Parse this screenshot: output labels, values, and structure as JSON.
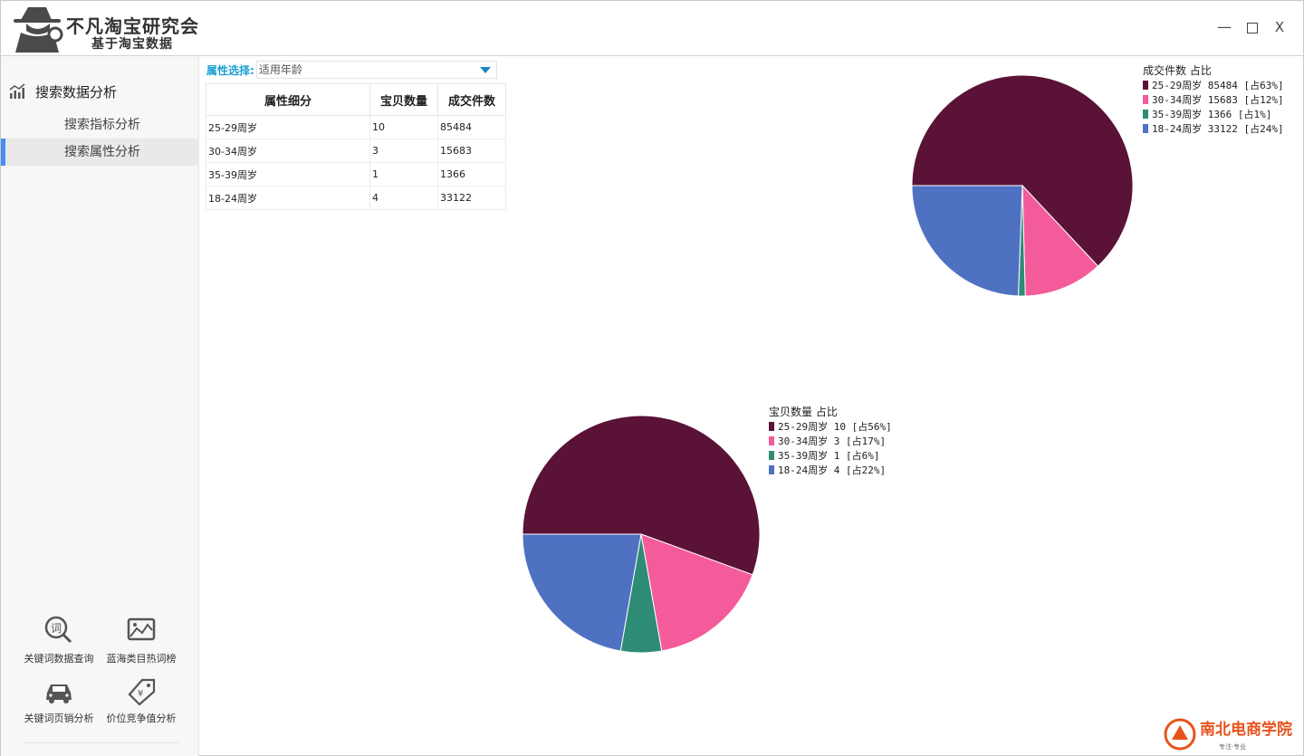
{
  "app": {
    "title": "不凡淘宝研究会",
    "subtitle": "基于淘宝数据",
    "minimize": "—",
    "close": "X"
  },
  "sidebar": {
    "section_label": "搜索数据分析",
    "items": [
      {
        "label": "搜索指标分析",
        "active": false
      },
      {
        "label": "搜索属性分析",
        "active": true
      }
    ],
    "tools": [
      {
        "label": "关键词数据查询",
        "icon": "search-word-icon"
      },
      {
        "label": "蓝海类目热词榜",
        "icon": "image-chart-icon"
      },
      {
        "label": "关键词页销分析",
        "icon": "car-icon"
      },
      {
        "label": "价位竞争值分析",
        "icon": "price-tag-icon"
      }
    ]
  },
  "filter": {
    "label": "属性选择:",
    "selected": "适用年龄"
  },
  "table": {
    "headers": [
      "属性细分",
      "宝贝数量",
      "成交件数"
    ],
    "rows": [
      [
        "25-29周岁",
        "10",
        "85484"
      ],
      [
        "30-34周岁",
        "3",
        "15683"
      ],
      [
        "35-39周岁",
        "1",
        "1366"
      ],
      [
        "18-24周岁",
        "4",
        "33122"
      ]
    ]
  },
  "colors": {
    "accent": "#4a8ef2",
    "label_blue": "#1b9fd4",
    "slice_1": "#5a1336",
    "slice_2": "#f45b9b",
    "slice_3": "#2e8b75",
    "slice_4": "#4e71c2"
  },
  "chart_data": [
    {
      "type": "pie",
      "title": "成交件数 占比",
      "categories": [
        "25-29周岁",
        "30-34周岁",
        "35-39周岁",
        "18-24周岁"
      ],
      "values": [
        85484,
        15683,
        1366,
        33122
      ],
      "legend_labels": [
        "25-29周岁 85484 [占63%]",
        "30-34周岁 15683 [占12%]",
        "35-39周岁 1366 [占1%]",
        "18-24周岁 33122 [占24%]"
      ],
      "legend": "top-right"
    },
    {
      "type": "pie",
      "title": "宝贝数量 占比",
      "categories": [
        "25-29周岁",
        "30-34周岁",
        "35-39周岁",
        "18-24周岁"
      ],
      "values": [
        10,
        3,
        1,
        4
      ],
      "legend_labels": [
        "25-29周岁 10 [占56%]",
        "30-34周岁 3 [占17%]",
        "35-39周岁 1 [占6%]",
        "18-24周岁 4 [占22%]"
      ],
      "legend": "top-right"
    }
  ],
  "watermark": {
    "brand": "南北电商学院",
    "tagline": "专注·专业"
  }
}
